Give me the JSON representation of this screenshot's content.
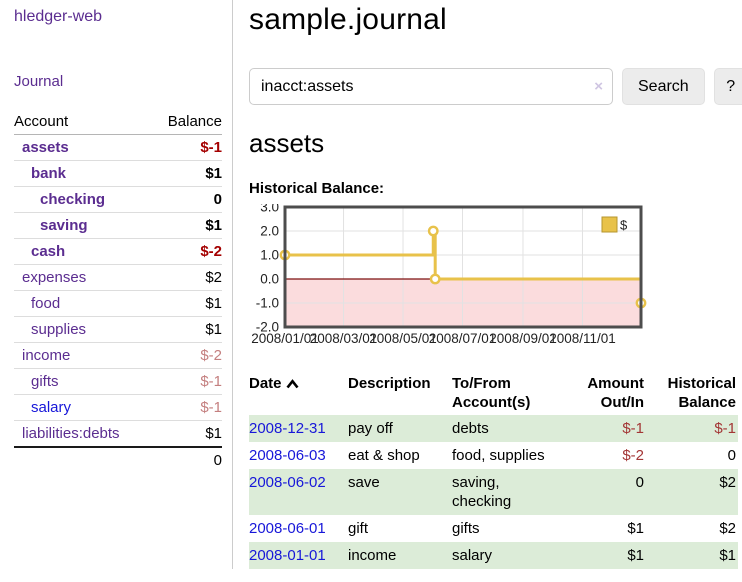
{
  "app": {
    "title": "hledger-web"
  },
  "colors": {
    "link_purple": "#5b2d90",
    "link_blue": "#1717d9",
    "negative_strong": "#a40000",
    "negative_soft": "#c47f7f",
    "table_negative": "#a33535",
    "row_stripe_green": "#dcecd8",
    "chart_gold": "#e8c24a",
    "chart_negative_region_pink": "#fbdcdd",
    "chart_zero_line_red": "#7d1111"
  },
  "sidebar": {
    "journal_label": "Journal",
    "accounts": {
      "header_account": "Account",
      "header_balance": "Balance",
      "rows": [
        {
          "name": "assets",
          "balance": "$-1",
          "indent": 1,
          "bold": true,
          "balance_style": "neg-strong"
        },
        {
          "name": "bank",
          "balance": "$1",
          "indent": 2,
          "bold": true,
          "balance_style": "pos"
        },
        {
          "name": "checking",
          "balance": "0",
          "indent": 3,
          "bold": true,
          "balance_style": "pos"
        },
        {
          "name": "saving",
          "balance": "$1",
          "indent": 3,
          "bold": true,
          "balance_style": "pos"
        },
        {
          "name": "cash",
          "balance": "$-2",
          "indent": 2,
          "bold": true,
          "balance_style": "neg-strong"
        },
        {
          "name": "expenses",
          "balance": "$2",
          "indent": 1,
          "bold": false,
          "balance_style": "pos"
        },
        {
          "name": "food",
          "balance": "$1",
          "indent": 2,
          "bold": false,
          "balance_style": "pos"
        },
        {
          "name": "supplies",
          "balance": "$1",
          "indent": 2,
          "bold": false,
          "balance_style": "pos"
        },
        {
          "name": "income",
          "balance": "$-2",
          "indent": 1,
          "bold": false,
          "balance_style": "neg-soft"
        },
        {
          "name": "gifts",
          "balance": "$-1",
          "indent": 2,
          "bold": false,
          "balance_style": "neg-soft"
        },
        {
          "name": "salary",
          "balance": "$-1",
          "indent": 2,
          "bold": false,
          "balance_style": "neg-soft",
          "link_color": "blue"
        },
        {
          "name": "liabilities:debts",
          "balance": "$1",
          "indent": 1,
          "bold": false,
          "balance_style": "pos"
        }
      ],
      "total": "0"
    }
  },
  "main": {
    "title": "sample.journal",
    "search": {
      "value": "inacct:assets",
      "clear_icon": "×",
      "button_label": "Search",
      "help_label": "?"
    },
    "account_heading": "assets",
    "chart_label": "Historical Balance:"
  },
  "chart_data": {
    "type": "line",
    "title": "Historical Balance:",
    "step": true,
    "series": [
      {
        "name": "$",
        "points": [
          {
            "date": "2008-01-01",
            "value": 1
          },
          {
            "date": "2008-06-01",
            "value": 2
          },
          {
            "date": "2008-06-03",
            "value": 0
          },
          {
            "date": "2008-12-31",
            "value": -1
          }
        ]
      }
    ],
    "x_range": [
      "2008-01-01",
      "2008-12-31"
    ],
    "x_ticks": [
      "2008/01/01",
      "2008/03/01",
      "2008/05/01",
      "2008/07/01",
      "2008/09/01",
      "2008/11/01"
    ],
    "y_ticks": [
      "3.0",
      "2.0",
      "1.0",
      "0.0",
      "-1.0",
      "-2.0"
    ],
    "ylim": [
      -2,
      3
    ],
    "grid": true,
    "legend_position": "top-right",
    "negative_region_shaded": true
  },
  "transactions": {
    "headers": {
      "date": "Date",
      "sort_icon": "chevron-up",
      "description": "Description",
      "tofrom": "To/From Account(s)",
      "amount": "Amount Out/In",
      "balance": "Historical Balance"
    },
    "rows": [
      {
        "date": "2008-12-31",
        "description": "pay off",
        "tofrom": "debts",
        "amount": "$-1",
        "amount_negative": true,
        "balance": "$-1",
        "balance_negative": true
      },
      {
        "date": "2008-06-03",
        "description": "eat & shop",
        "tofrom": "food, supplies",
        "amount": "$-2",
        "amount_negative": true,
        "balance": "0",
        "balance_negative": false
      },
      {
        "date": "2008-06-02",
        "description": "save",
        "tofrom": "saving,\nchecking",
        "amount": "0",
        "amount_negative": false,
        "balance": "$2",
        "balance_negative": false
      },
      {
        "date": "2008-06-01",
        "description": "gift",
        "tofrom": "gifts",
        "amount": "$1",
        "amount_negative": false,
        "balance": "$2",
        "balance_negative": false
      },
      {
        "date": "2008-01-01",
        "description": "income",
        "tofrom": "salary",
        "amount": "$1",
        "amount_negative": false,
        "balance": "$1",
        "balance_negative": false
      }
    ]
  }
}
